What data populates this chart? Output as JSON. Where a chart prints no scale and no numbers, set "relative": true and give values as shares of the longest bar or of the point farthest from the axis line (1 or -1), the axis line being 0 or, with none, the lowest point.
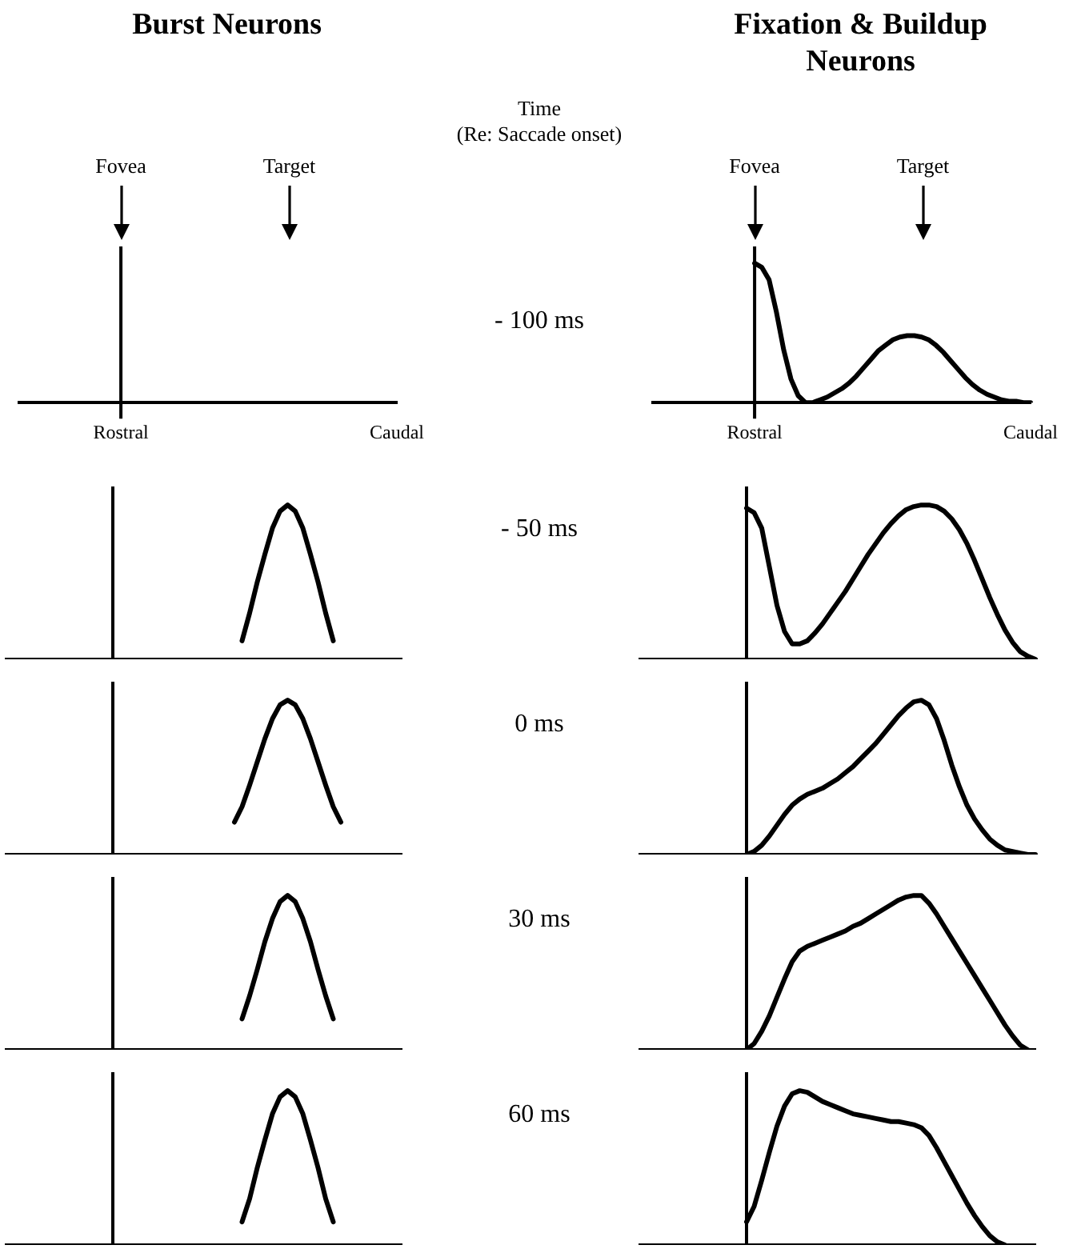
{
  "chart_data": [
    {
      "type": "other",
      "title": "Burst Neurons",
      "annotations": [
        "Fovea",
        "Target",
        "Time",
        "(Re: Saccade onset)",
        "- 100 ms"
      ],
      "categories": [
        null,
        null,
        null,
        null,
        null,
        null,
        null,
        null,
        null,
        null,
        null,
        null,
        null,
        null,
        "Rostral",
        null,
        null,
        null,
        null,
        null,
        null,
        null,
        null,
        null,
        null,
        null,
        null,
        null,
        null,
        null,
        null,
        null,
        null,
        null,
        null,
        null,
        null,
        null,
        null,
        null,
        null,
        null,
        null,
        null,
        null,
        null,
        null,
        null,
        null,
        null,
        null,
        null,
        "Caudal"
      ]
    },
    {
      "type": "line",
      "title": "Fixation & Buildup Neurons",
      "relative": true,
      "marker": "none",
      "tick_labels": "x",
      "annotations": [
        "Fovea",
        "Target"
      ],
      "categories": [
        null,
        null,
        null,
        null,
        null,
        null,
        null,
        null,
        null,
        null,
        null,
        null,
        null,
        null,
        "Rostral",
        null,
        null,
        null,
        null,
        null,
        null,
        null,
        null,
        null,
        null,
        null,
        null,
        null,
        null,
        null,
        null,
        null,
        null,
        null,
        null,
        null,
        null,
        null,
        null,
        null,
        null,
        null,
        null,
        null,
        null,
        null,
        null,
        null,
        null,
        null,
        null,
        null,
        "Caudal"
      ],
      "series": [
        {
          "color": "#000000",
          "values": [
            null,
            null,
            null,
            null,
            null,
            null,
            null,
            null,
            null,
            null,
            null,
            null,
            null,
            null,
            1,
            0.97,
            0.88,
            0.65,
            0.38,
            0.17,
            0.05,
            0,
            0,
            0.02,
            0.04,
            0.07,
            0.1,
            0.14,
            0.19,
            0.25,
            0.31,
            0.37,
            0.41,
            0.45,
            0.47,
            0.48,
            0.48,
            0.47,
            0.45,
            0.41,
            0.36,
            0.3,
            0.24,
            0.18,
            0.13,
            0.09,
            0.06,
            0.04,
            0.02,
            0.01,
            0.01,
            0,
            0
          ]
        }
      ]
    },
    {
      "type": "line",
      "relative": true,
      "marker": "none",
      "tick_labels": false,
      "annotations": [
        "- 50 ms"
      ],
      "categories": [
        null,
        null,
        null,
        null,
        null,
        null,
        null,
        null,
        null,
        null,
        null,
        null,
        null,
        null,
        null,
        null,
        null,
        null,
        null,
        null,
        null,
        null,
        null,
        null,
        null,
        null,
        null,
        null,
        null,
        null,
        null,
        null,
        null,
        null,
        null,
        null,
        null,
        null,
        null,
        null,
        null,
        null,
        null,
        null,
        null,
        null,
        null,
        null,
        null,
        null,
        null,
        null,
        null
      ],
      "series": [
        {
          "color": "#000000",
          "values": [
            null,
            null,
            null,
            null,
            null,
            null,
            null,
            null,
            null,
            null,
            null,
            null,
            null,
            null,
            null,
            null,
            null,
            null,
            null,
            null,
            null,
            null,
            null,
            null,
            null,
            null,
            null,
            null,
            null,
            null,
            null,
            0.12,
            0.3,
            0.5,
            0.68,
            0.85,
            0.96,
            1,
            0.96,
            0.85,
            0.68,
            0.5,
            0.3,
            0.12,
            null,
            null,
            null,
            null,
            null,
            null,
            null,
            null,
            null
          ]
        }
      ]
    },
    {
      "type": "line",
      "relative": true,
      "marker": "none",
      "tick_labels": false,
      "categories": [
        null,
        null,
        null,
        null,
        null,
        null,
        null,
        null,
        null,
        null,
        null,
        null,
        null,
        null,
        null,
        null,
        null,
        null,
        null,
        null,
        null,
        null,
        null,
        null,
        null,
        null,
        null,
        null,
        null,
        null,
        null,
        null,
        null,
        null,
        null,
        null,
        null,
        null,
        null,
        null,
        null,
        null,
        null,
        null,
        null,
        null,
        null,
        null,
        null,
        null,
        null,
        null,
        null
      ],
      "series": [
        {
          "color": "#000000",
          "values": [
            null,
            null,
            null,
            null,
            null,
            null,
            null,
            null,
            null,
            null,
            null,
            null,
            null,
            null,
            0.98,
            0.95,
            0.85,
            0.6,
            0.35,
            0.18,
            0.1,
            0.1,
            0.12,
            0.17,
            0.23,
            0.3,
            0.37,
            0.44,
            0.52,
            0.6,
            0.68,
            0.75,
            0.82,
            0.88,
            0.93,
            0.97,
            0.99,
            1,
            1,
            0.99,
            0.96,
            0.91,
            0.84,
            0.75,
            0.64,
            0.52,
            0.4,
            0.29,
            0.19,
            0.11,
            0.05,
            0.02,
            0
          ]
        }
      ]
    },
    {
      "type": "line",
      "relative": true,
      "marker": "none",
      "tick_labels": false,
      "annotations": [
        "0 ms"
      ],
      "categories": [
        null,
        null,
        null,
        null,
        null,
        null,
        null,
        null,
        null,
        null,
        null,
        null,
        null,
        null,
        null,
        null,
        null,
        null,
        null,
        null,
        null,
        null,
        null,
        null,
        null,
        null,
        null,
        null,
        null,
        null,
        null,
        null,
        null,
        null,
        null,
        null,
        null,
        null,
        null,
        null,
        null,
        null,
        null,
        null,
        null,
        null,
        null,
        null,
        null,
        null,
        null,
        null,
        null
      ],
      "series": [
        {
          "color": "#000000",
          "values": [
            null,
            null,
            null,
            null,
            null,
            null,
            null,
            null,
            null,
            null,
            null,
            null,
            null,
            null,
            null,
            null,
            null,
            null,
            null,
            null,
            null,
            null,
            null,
            null,
            null,
            null,
            null,
            null,
            null,
            null,
            0.21,
            0.31,
            0.45,
            0.6,
            0.75,
            0.88,
            0.97,
            1,
            0.97,
            0.88,
            0.75,
            0.6,
            0.45,
            0.31,
            0.21,
            null,
            null,
            null,
            null,
            null,
            null,
            null,
            null
          ]
        }
      ]
    },
    {
      "type": "line",
      "relative": true,
      "marker": "none",
      "tick_labels": false,
      "categories": [
        null,
        null,
        null,
        null,
        null,
        null,
        null,
        null,
        null,
        null,
        null,
        null,
        null,
        null,
        null,
        null,
        null,
        null,
        null,
        null,
        null,
        null,
        null,
        null,
        null,
        null,
        null,
        null,
        null,
        null,
        null,
        null,
        null,
        null,
        null,
        null,
        null,
        null,
        null,
        null,
        null,
        null,
        null,
        null,
        null,
        null,
        null,
        null,
        null,
        null,
        null,
        null,
        null
      ],
      "series": [
        {
          "color": "#000000",
          "values": [
            null,
            null,
            null,
            null,
            null,
            null,
            null,
            null,
            null,
            null,
            null,
            null,
            null,
            null,
            0,
            0.02,
            0.06,
            0.12,
            0.19,
            0.26,
            0.32,
            0.36,
            0.39,
            0.41,
            0.43,
            0.46,
            0.49,
            0.53,
            0.57,
            0.62,
            0.67,
            0.72,
            0.78,
            0.84,
            0.9,
            0.95,
            0.99,
            1,
            0.97,
            0.88,
            0.74,
            0.58,
            0.44,
            0.32,
            0.23,
            0.16,
            0.1,
            0.06,
            0.03,
            0.02,
            0.01,
            0,
            0
          ]
        }
      ]
    },
    {
      "type": "line",
      "relative": true,
      "marker": "none",
      "tick_labels": false,
      "annotations": [
        "30 ms"
      ],
      "categories": [
        null,
        null,
        null,
        null,
        null,
        null,
        null,
        null,
        null,
        null,
        null,
        null,
        null,
        null,
        null,
        null,
        null,
        null,
        null,
        null,
        null,
        null,
        null,
        null,
        null,
        null,
        null,
        null,
        null,
        null,
        null,
        null,
        null,
        null,
        null,
        null,
        null,
        null,
        null,
        null,
        null,
        null,
        null,
        null,
        null,
        null,
        null,
        null,
        null,
        null,
        null,
        null,
        null
      ],
      "series": [
        {
          "color": "#000000",
          "values": [
            null,
            null,
            null,
            null,
            null,
            null,
            null,
            null,
            null,
            null,
            null,
            null,
            null,
            null,
            null,
            null,
            null,
            null,
            null,
            null,
            null,
            null,
            null,
            null,
            null,
            null,
            null,
            null,
            null,
            null,
            null,
            0.2,
            0.35,
            0.52,
            0.7,
            0.85,
            0.96,
            1,
            0.96,
            0.85,
            0.7,
            0.52,
            0.35,
            0.2,
            null,
            null,
            null,
            null,
            null,
            null,
            null,
            null,
            null
          ]
        }
      ]
    },
    {
      "type": "line",
      "relative": true,
      "marker": "none",
      "tick_labels": false,
      "categories": [
        null,
        null,
        null,
        null,
        null,
        null,
        null,
        null,
        null,
        null,
        null,
        null,
        null,
        null,
        null,
        null,
        null,
        null,
        null,
        null,
        null,
        null,
        null,
        null,
        null,
        null,
        null,
        null,
        null,
        null,
        null,
        null,
        null,
        null,
        null,
        null,
        null,
        null,
        null,
        null,
        null,
        null,
        null,
        null,
        null,
        null,
        null,
        null,
        null,
        null,
        null,
        null,
        null
      ],
      "series": [
        {
          "color": "#000000",
          "values": [
            null,
            null,
            null,
            null,
            null,
            null,
            null,
            null,
            null,
            null,
            null,
            null,
            null,
            null,
            0,
            0.04,
            0.12,
            0.22,
            0.34,
            0.46,
            0.57,
            0.64,
            0.67,
            0.69,
            0.71,
            0.73,
            0.75,
            0.77,
            0.8,
            0.82,
            0.85,
            0.88,
            0.91,
            0.94,
            0.97,
            0.99,
            1,
            1,
            0.95,
            0.88,
            0.8,
            0.72,
            0.64,
            0.56,
            0.48,
            0.4,
            0.32,
            0.24,
            0.16,
            0.09,
            0.03,
            0,
            null
          ]
        }
      ]
    },
    {
      "type": "line",
      "relative": true,
      "marker": "none",
      "tick_labels": false,
      "annotations": [
        "60 ms"
      ],
      "categories": [
        null,
        null,
        null,
        null,
        null,
        null,
        null,
        null,
        null,
        null,
        null,
        null,
        null,
        null,
        null,
        null,
        null,
        null,
        null,
        null,
        null,
        null,
        null,
        null,
        null,
        null,
        null,
        null,
        null,
        null,
        null,
        null,
        null,
        null,
        null,
        null,
        null,
        null,
        null,
        null,
        null,
        null,
        null,
        null,
        null,
        null,
        null,
        null,
        null,
        null,
        null,
        null,
        null
      ],
      "series": [
        {
          "color": "#000000",
          "values": [
            null,
            null,
            null,
            null,
            null,
            null,
            null,
            null,
            null,
            null,
            null,
            null,
            null,
            null,
            null,
            null,
            null,
            null,
            null,
            null,
            null,
            null,
            null,
            null,
            null,
            null,
            null,
            null,
            null,
            null,
            null,
            0.15,
            0.3,
            0.5,
            0.68,
            0.85,
            0.96,
            1,
            0.96,
            0.85,
            0.68,
            0.5,
            0.3,
            0.15,
            null,
            null,
            null,
            null,
            null,
            null,
            null,
            null,
            null
          ]
        }
      ]
    },
    {
      "type": "line",
      "relative": true,
      "marker": "none",
      "tick_labels": false,
      "categories": [
        null,
        null,
        null,
        null,
        null,
        null,
        null,
        null,
        null,
        null,
        null,
        null,
        null,
        null,
        null,
        null,
        null,
        null,
        null,
        null,
        null,
        null,
        null,
        null,
        null,
        null,
        null,
        null,
        null,
        null,
        null,
        null,
        null,
        null,
        null,
        null,
        null,
        null,
        null,
        null,
        null,
        null,
        null,
        null,
        null,
        null,
        null,
        null,
        null,
        null,
        null,
        null,
        null
      ],
      "series": [
        {
          "color": "#000000",
          "values": [
            null,
            null,
            null,
            null,
            null,
            null,
            null,
            null,
            null,
            null,
            null,
            null,
            null,
            null,
            0.15,
            0.25,
            0.42,
            0.6,
            0.77,
            0.9,
            0.98,
            1,
            0.99,
            0.96,
            0.93,
            0.91,
            0.89,
            0.87,
            0.85,
            0.84,
            0.83,
            0.82,
            0.81,
            0.8,
            0.8,
            0.79,
            0.78,
            0.76,
            0.71,
            0.63,
            0.54,
            0.45,
            0.36,
            0.27,
            0.19,
            0.12,
            0.06,
            0.02,
            0,
            null,
            null,
            null,
            null
          ]
        }
      ]
    }
  ]
}
